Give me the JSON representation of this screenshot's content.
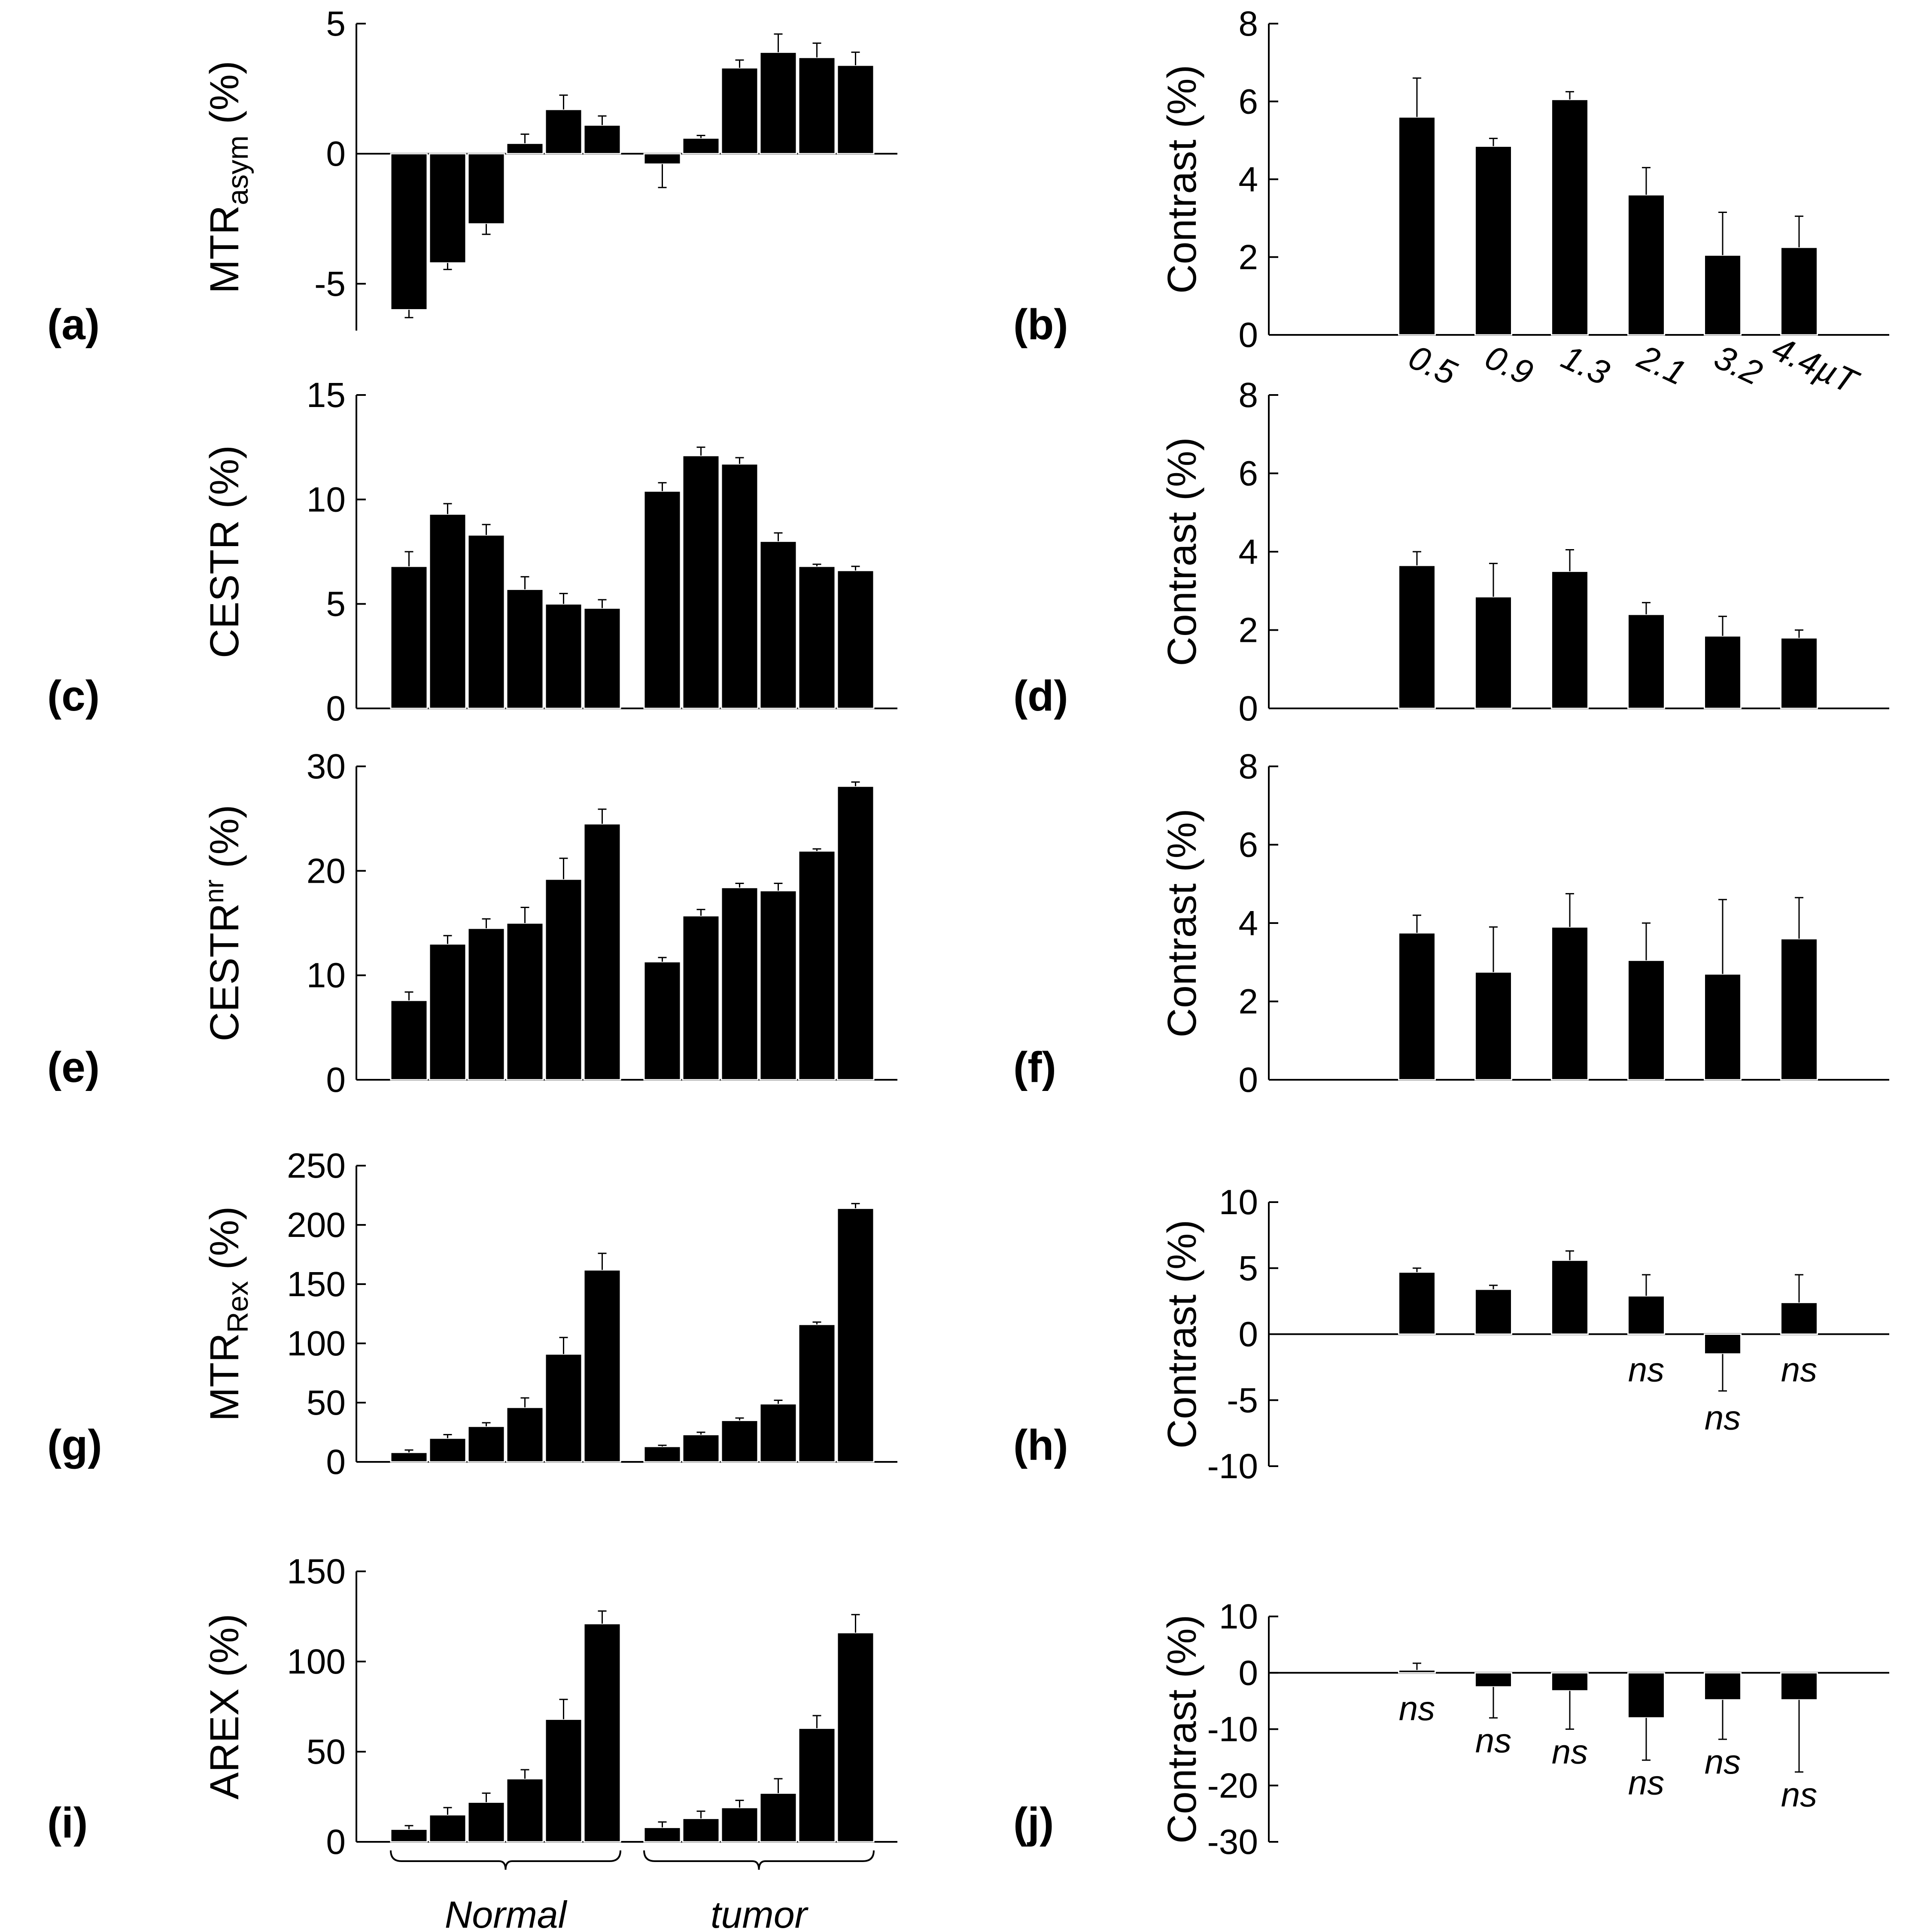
{
  "figure": {
    "group_labels": [
      "Normal",
      "tumor"
    ],
    "contrast_ylabel": "Contrast (%)"
  },
  "chart_data": [
    {
      "id": "a",
      "panel_label": "(a)",
      "type": "bar",
      "ylabel_main": "MTR",
      "ylabel_sub": "asym",
      "ylabel_tail": " (%)",
      "ylim": [
        -6.8,
        5
      ],
      "ticks": [
        -5,
        0,
        5
      ],
      "tick_labels": [
        "-5",
        "0",
        "5"
      ],
      "series": [
        {
          "name": "Normal",
          "values": [
            -6.0,
            -4.2,
            -2.7,
            0.4,
            1.7,
            1.1
          ],
          "errors": [
            0.3,
            0.25,
            0.4,
            0.35,
            0.55,
            0.35
          ]
        },
        {
          "name": "tumor",
          "values": [
            -0.4,
            0.6,
            3.3,
            3.9,
            3.7,
            3.4
          ],
          "errors": [
            0.9,
            0.1,
            0.3,
            0.7,
            0.55,
            0.5
          ]
        }
      ]
    },
    {
      "id": "b",
      "panel_label": "(b)",
      "type": "bar",
      "ylabel": "Contrast (%)",
      "ylim": [
        0,
        8
      ],
      "ticks": [
        0,
        2,
        4,
        6,
        8
      ],
      "tick_labels": [
        "0",
        "2",
        "4",
        "6",
        "8"
      ],
      "categories": [
        "0.5",
        "0.9",
        "1.3",
        "2.1",
        "3.2",
        "4.4µT"
      ],
      "values": [
        5.6,
        4.85,
        6.05,
        3.6,
        2.05,
        2.25
      ],
      "errors": [
        1.0,
        0.2,
        0.2,
        0.7,
        1.1,
        0.8
      ],
      "annotations": []
    },
    {
      "id": "c",
      "panel_label": "(c)",
      "type": "bar",
      "ylabel": "CESTR (%)",
      "ylim": [
        0,
        15
      ],
      "ticks": [
        0,
        5,
        10,
        15
      ],
      "tick_labels": [
        "0",
        "5",
        "10",
        "15"
      ],
      "series": [
        {
          "name": "Normal",
          "values": [
            6.8,
            9.3,
            8.3,
            5.7,
            5.0,
            4.8
          ],
          "errors": [
            0.7,
            0.5,
            0.5,
            0.6,
            0.5,
            0.4
          ]
        },
        {
          "name": "tumor",
          "values": [
            10.4,
            12.1,
            11.7,
            8.0,
            6.8,
            6.6
          ],
          "errors": [
            0.4,
            0.4,
            0.3,
            0.4,
            0.1,
            0.2
          ]
        }
      ]
    },
    {
      "id": "d",
      "panel_label": "(d)",
      "type": "bar",
      "ylabel": "Contrast (%)",
      "ylim": [
        0,
        8
      ],
      "ticks": [
        0,
        2,
        4,
        6,
        8
      ],
      "tick_labels": [
        "0",
        "2",
        "4",
        "6",
        "8"
      ],
      "categories": [
        "0.5",
        "0.9",
        "1.3",
        "2.1",
        "3.2",
        "4.4µT"
      ],
      "values": [
        3.65,
        2.85,
        3.5,
        2.4,
        1.85,
        1.8
      ],
      "errors": [
        0.35,
        0.85,
        0.55,
        0.3,
        0.5,
        0.2
      ],
      "annotations": []
    },
    {
      "id": "e",
      "panel_label": "(e)",
      "type": "bar",
      "ylabel_main": "CESTR",
      "ylabel_sup": "nr",
      "ylabel_tail": " (%)",
      "ylim": [
        0,
        30
      ],
      "ticks": [
        0,
        10,
        20,
        30
      ],
      "tick_labels": [
        "0",
        "10",
        "20",
        "30"
      ],
      "series": [
        {
          "name": "Normal",
          "values": [
            7.6,
            13.0,
            14.5,
            15.0,
            19.2,
            24.5
          ],
          "errors": [
            0.8,
            0.8,
            0.9,
            1.5,
            2.0,
            1.4
          ]
        },
        {
          "name": "tumor",
          "values": [
            11.3,
            15.7,
            18.4,
            18.1,
            21.9,
            28.1
          ],
          "errors": [
            0.4,
            0.6,
            0.4,
            0.7,
            0.2,
            0.4
          ]
        }
      ]
    },
    {
      "id": "f",
      "panel_label": "(f)",
      "type": "bar",
      "ylabel": "Contrast (%)",
      "ylim": [
        0,
        8
      ],
      "ticks": [
        0,
        2,
        4,
        6,
        8
      ],
      "tick_labels": [
        "0",
        "2",
        "4",
        "6",
        "8"
      ],
      "categories": [
        "0.5",
        "0.9",
        "1.3",
        "2.1",
        "3.2",
        "4.4µT"
      ],
      "values": [
        3.75,
        2.75,
        3.9,
        3.05,
        2.7,
        3.6
      ],
      "errors": [
        0.45,
        1.15,
        0.85,
        0.95,
        1.9,
        1.05
      ],
      "annotations": []
    },
    {
      "id": "g",
      "panel_label": "(g)",
      "type": "bar",
      "ylabel_main": "MTR",
      "ylabel_sub": "Rex",
      "ylabel_tail": " (%)",
      "ylim": [
        0,
        250
      ],
      "ticks": [
        0,
        50,
        100,
        150,
        200,
        250
      ],
      "tick_labels": [
        "0",
        "50",
        "100",
        "150",
        "200",
        "250"
      ],
      "series": [
        {
          "name": "Normal",
          "values": [
            8,
            20,
            30,
            46,
            91,
            162
          ],
          "errors": [
            2,
            3,
            3,
            8,
            14,
            14
          ]
        },
        {
          "name": "tumor",
          "values": [
            13,
            23,
            35,
            49,
            116,
            214
          ],
          "errors": [
            1,
            2,
            2,
            3,
            2,
            4
          ]
        }
      ]
    },
    {
      "id": "h",
      "panel_label": "(h)",
      "type": "bar",
      "ylabel": "Contrast (%)",
      "ylim": [
        -10,
        10
      ],
      "ticks": [
        -10,
        -5,
        0,
        5,
        10
      ],
      "tick_labels": [
        "-10",
        "-5",
        "0",
        "5",
        "10"
      ],
      "categories": [
        "0.5",
        "0.9",
        "1.3",
        "2.1",
        "3.2",
        "4.4µT"
      ],
      "values": [
        4.7,
        3.4,
        5.6,
        2.9,
        -1.5,
        2.4
      ],
      "errors": [
        0.3,
        0.3,
        0.7,
        1.6,
        2.8,
        2.1
      ],
      "annotations": [
        "",
        "",
        "",
        "ns",
        "ns",
        "ns"
      ]
    },
    {
      "id": "i",
      "panel_label": "(i)",
      "type": "bar",
      "ylabel": "AREX (%)",
      "ylim": [
        0,
        150
      ],
      "ticks": [
        0,
        50,
        100,
        150
      ],
      "tick_labels": [
        "0",
        "50",
        "100",
        "150"
      ],
      "series": [
        {
          "name": "Normal",
          "values": [
            7,
            15,
            22,
            35,
            68,
            121
          ],
          "errors": [
            2,
            4,
            5,
            5,
            11,
            7
          ]
        },
        {
          "name": "tumor",
          "values": [
            8,
            13,
            19,
            27,
            63,
            116
          ],
          "errors": [
            3,
            4,
            4,
            8,
            7,
            10
          ]
        }
      ]
    },
    {
      "id": "j",
      "panel_label": "(j)",
      "type": "bar",
      "ylabel": "Contrast (%)",
      "ylim": [
        -30,
        10
      ],
      "ticks": [
        -30,
        -20,
        -10,
        0,
        10
      ],
      "tick_labels": [
        "-30",
        "-20",
        "-10",
        "0",
        "10"
      ],
      "categories": [
        "0.5",
        "0.9",
        "1.3",
        "2.1",
        "3.2",
        "4.4µT"
      ],
      "values": [
        0.5,
        -2.5,
        -3.2,
        -8.0,
        -4.8,
        -4.8
      ],
      "errors": [
        1.2,
        5.5,
        6.8,
        7.5,
        7.0,
        12.8
      ],
      "annotations": [
        "ns",
        "ns",
        "ns",
        "ns",
        "ns",
        "ns"
      ]
    }
  ]
}
